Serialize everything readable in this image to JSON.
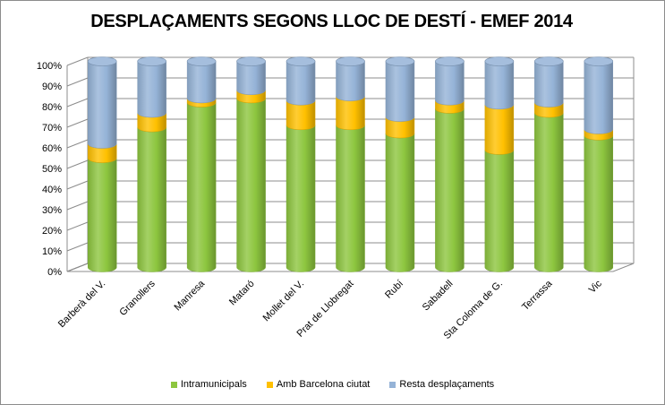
{
  "chart_data": {
    "type": "bar",
    "stacked": true,
    "style": "3d-cylinder",
    "title": "DESPLAÇAMENTS SEGONS LLOC DE DESTÍ - EMEF 2014",
    "xlabel": "",
    "ylabel": "",
    "ylim": [
      0,
      100
    ],
    "yticks": [
      "0%",
      "10%",
      "20%",
      "30%",
      "40%",
      "50%",
      "60%",
      "70%",
      "80%",
      "90%",
      "100%"
    ],
    "grid": true,
    "legend_position": "bottom",
    "categories": [
      "Barberà del V.",
      "Granollers",
      "Manresa",
      "Mataró",
      "Mollet del V.",
      "Prat de Llobregat",
      "Rubí",
      "Sabadell",
      "Sta Coloma de G.",
      "Terrassa",
      "Vic"
    ],
    "series": [
      {
        "name": "Intramunicipals",
        "color": "#8dc63f",
        "values": [
          53,
          68,
          80,
          82,
          69,
          69,
          65,
          77,
          57,
          75,
          64
        ]
      },
      {
        "name": "Amb Barcelona ciutat",
        "color": "#ffc000",
        "values": [
          7,
          7,
          2,
          4,
          12,
          14,
          8,
          4,
          22,
          5,
          3
        ]
      },
      {
        "name": "Resta desplaçaments",
        "color": "#95b3d7",
        "values": [
          40,
          25,
          18,
          14,
          19,
          17,
          27,
          19,
          21,
          20,
          33
        ]
      }
    ]
  }
}
